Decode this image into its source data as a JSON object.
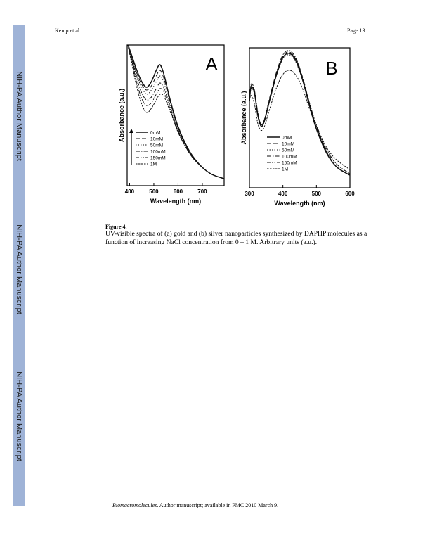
{
  "header": {
    "left": "Kemp et al.",
    "right": "Page 13"
  },
  "sidebar": {
    "labels": [
      "NIH-PA Author Manuscript",
      "NIH-PA Author Manuscript",
      "NIH-PA Author Manuscript"
    ]
  },
  "figure": {
    "caption_title": "Figure 4.",
    "caption_text": "UV-visible spectra of (a) gold and (b) silver nanoparticles synthesized by DAPHP molecules as a function of increasing NaCl concentration from 0 – 1 M. Arbitrary units (a.u.)."
  },
  "footer": {
    "journal": "Biomacromolecules",
    "rest": ". Author manuscript; available in PMC 2010 March 9."
  },
  "chart_data": [
    {
      "type": "line",
      "panel_label": "A",
      "xlabel": "Wavelength (nm)",
      "ylabel": "Absorbance (a.u.)",
      "xlim": [
        390,
        790
      ],
      "ylim": [
        0,
        1
      ],
      "xticks": [
        400,
        500,
        600,
        700
      ],
      "legend_placement": "bottom-left",
      "legend_arrow": true,
      "series": [
        {
          "name": "0mM",
          "dash": "",
          "x": [
            390,
            410,
            430,
            450,
            470,
            490,
            510,
            525,
            540,
            560,
            580,
            600,
            630,
            660,
            700,
            740,
            790
          ],
          "y": [
            1.02,
            0.92,
            0.82,
            0.74,
            0.7,
            0.74,
            0.82,
            0.86,
            0.8,
            0.66,
            0.53,
            0.42,
            0.3,
            0.21,
            0.13,
            0.08,
            0.05
          ]
        },
        {
          "name": "10mM",
          "dash": "6 3",
          "x": [
            390,
            410,
            430,
            450,
            470,
            490,
            510,
            525,
            540,
            560,
            580,
            600,
            630,
            660,
            700,
            740,
            790
          ],
          "y": [
            1.02,
            0.91,
            0.8,
            0.72,
            0.68,
            0.71,
            0.78,
            0.82,
            0.77,
            0.64,
            0.52,
            0.41,
            0.29,
            0.2,
            0.13,
            0.08,
            0.05
          ]
        },
        {
          "name": "50mM",
          "dash": "1.5 2",
          "x": [
            390,
            410,
            430,
            450,
            470,
            490,
            510,
            525,
            540,
            560,
            580,
            600,
            630,
            660,
            700,
            740,
            790
          ],
          "y": [
            1.02,
            0.9,
            0.78,
            0.7,
            0.65,
            0.68,
            0.74,
            0.78,
            0.74,
            0.62,
            0.51,
            0.4,
            0.29,
            0.2,
            0.13,
            0.08,
            0.05
          ]
        },
        {
          "name": "100mM",
          "dash": "6 2 1.5 2",
          "x": [
            390,
            410,
            430,
            450,
            470,
            490,
            510,
            525,
            540,
            560,
            580,
            600,
            630,
            660,
            700,
            740,
            790
          ],
          "y": [
            1.02,
            0.89,
            0.76,
            0.66,
            0.61,
            0.63,
            0.69,
            0.73,
            0.7,
            0.6,
            0.49,
            0.39,
            0.28,
            0.2,
            0.13,
            0.08,
            0.05
          ]
        },
        {
          "name": "150mM",
          "dash": "5 2 1.5 2 1.5 2",
          "x": [
            390,
            410,
            430,
            450,
            470,
            490,
            510,
            525,
            540,
            560,
            580,
            600,
            630,
            660,
            700,
            740,
            790
          ],
          "y": [
            1.02,
            0.88,
            0.73,
            0.62,
            0.57,
            0.59,
            0.65,
            0.69,
            0.67,
            0.58,
            0.48,
            0.38,
            0.28,
            0.2,
            0.13,
            0.08,
            0.05
          ]
        },
        {
          "name": "1M",
          "dash": "2.5 1.5",
          "x": [
            390,
            410,
            430,
            450,
            470,
            490,
            510,
            525,
            540,
            560,
            580,
            600,
            630,
            660,
            700,
            740,
            790
          ],
          "y": [
            1.02,
            0.86,
            0.7,
            0.58,
            0.52,
            0.55,
            0.61,
            0.65,
            0.64,
            0.56,
            0.47,
            0.38,
            0.28,
            0.2,
            0.13,
            0.08,
            0.05
          ]
        }
      ]
    },
    {
      "type": "line",
      "panel_label": "B",
      "xlabel": "Wavelength (nm)",
      "ylabel": "Absorbance (a.u.)",
      "xlim": [
        300,
        600
      ],
      "ylim": [
        0,
        1
      ],
      "xticks": [
        300,
        400,
        500,
        600
      ],
      "legend_placement": "bottom-center",
      "legend_arrow": false,
      "series": [
        {
          "name": "0mM",
          "dash": "",
          "x": [
            300,
            305,
            315,
            325,
            335,
            345,
            360,
            380,
            400,
            420,
            440,
            460,
            480,
            500,
            530,
            560,
            600
          ],
          "y": [
            0.62,
            0.72,
            0.68,
            0.52,
            0.44,
            0.48,
            0.62,
            0.8,
            0.93,
            0.96,
            0.9,
            0.76,
            0.58,
            0.42,
            0.25,
            0.15,
            0.09
          ]
        },
        {
          "name": "10mM",
          "dash": "6 3",
          "x": [
            300,
            305,
            315,
            325,
            335,
            345,
            360,
            380,
            400,
            420,
            440,
            460,
            480,
            500,
            530,
            560,
            600
          ],
          "y": [
            0.62,
            0.73,
            0.69,
            0.53,
            0.45,
            0.49,
            0.63,
            0.81,
            0.94,
            0.97,
            0.91,
            0.77,
            0.59,
            0.43,
            0.26,
            0.15,
            0.09
          ]
        },
        {
          "name": "50mM",
          "dash": "1.5 2",
          "x": [
            300,
            305,
            315,
            325,
            335,
            345,
            360,
            380,
            400,
            420,
            440,
            460,
            480,
            500,
            530,
            560,
            600
          ],
          "y": [
            0.62,
            0.71,
            0.67,
            0.51,
            0.44,
            0.48,
            0.62,
            0.8,
            0.92,
            0.95,
            0.89,
            0.76,
            0.59,
            0.44,
            0.27,
            0.17,
            0.1
          ]
        },
        {
          "name": "100mM",
          "dash": "6 2 1.5 2",
          "x": [
            300,
            305,
            315,
            325,
            335,
            345,
            360,
            380,
            400,
            420,
            440,
            460,
            480,
            500,
            530,
            560,
            600
          ],
          "y": [
            0.62,
            0.74,
            0.7,
            0.54,
            0.45,
            0.49,
            0.64,
            0.82,
            0.95,
            0.98,
            0.92,
            0.78,
            0.6,
            0.44,
            0.26,
            0.15,
            0.09
          ]
        },
        {
          "name": "150mM",
          "dash": "5 2 1.5 2 1.5 2",
          "x": [
            300,
            305,
            315,
            325,
            335,
            345,
            360,
            380,
            400,
            420,
            440,
            460,
            480,
            500,
            530,
            560,
            600
          ],
          "y": [
            0.62,
            0.72,
            0.68,
            0.53,
            0.45,
            0.49,
            0.63,
            0.81,
            0.93,
            0.96,
            0.91,
            0.77,
            0.6,
            0.45,
            0.28,
            0.17,
            0.1
          ]
        },
        {
          "name": "1M",
          "dash": "2.5 1.5",
          "x": [
            300,
            305,
            315,
            325,
            335,
            345,
            360,
            380,
            400,
            420,
            440,
            460,
            480,
            500,
            530,
            560,
            600
          ],
          "y": [
            0.62,
            0.66,
            0.6,
            0.46,
            0.41,
            0.44,
            0.56,
            0.71,
            0.81,
            0.84,
            0.8,
            0.7,
            0.56,
            0.44,
            0.29,
            0.2,
            0.13
          ]
        }
      ]
    }
  ]
}
